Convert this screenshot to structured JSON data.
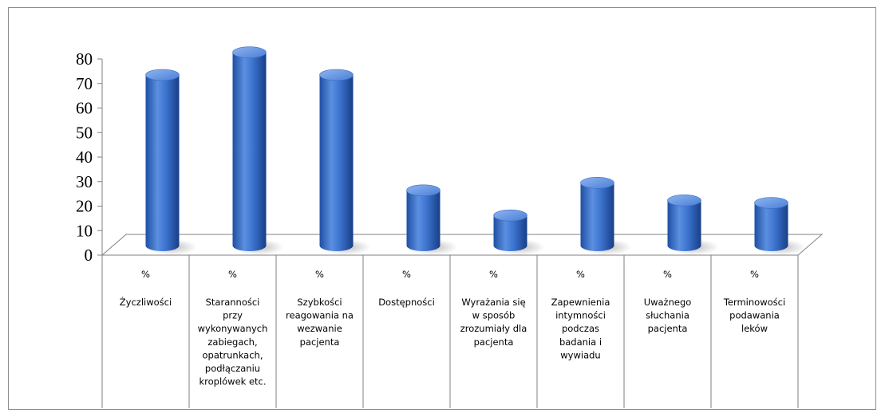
{
  "chart_data": {
    "type": "bar",
    "style": "3d-cylinder",
    "ylim": [
      0,
      80
    ],
    "yticks": [
      0,
      10,
      20,
      30,
      40,
      50,
      60,
      70,
      80
    ],
    "categories": [
      "Życzliwości",
      "Staranności przy wykonywanych zabiegach, opatrunkach, podłączaniu kroplówek etc.",
      "Szybkości reagowania na wezwanie pacjenta",
      "Dostępności",
      "Wyrażania się w sposób zrozumiały dla pacjenta",
      "Zapewnienia intymności podczas badania i wywiadu",
      "Uważnego słuchania pacjenta",
      "Terminowości podawania leków"
    ],
    "category_lines": [
      [
        "Życzliwości"
      ],
      [
        "Staranności",
        "przy",
        "wykonywanych",
        "zabiegach,",
        "opatrunkach,",
        "podłączaniu",
        "kroplówek etc."
      ],
      [
        "Szybkości",
        "reagowania na",
        "wezwanie",
        "pacjenta"
      ],
      [
        "Dostępności"
      ],
      [
        "Wyrażania się",
        "w sposób",
        "zrozumiały dla",
        "pacjenta"
      ],
      [
        "Zapewnienia",
        "intymności",
        "podczas",
        "badania i",
        "wywiadu"
      ],
      [
        "Uważnego",
        "słuchania",
        "pacjenta"
      ],
      [
        "Terminowości",
        "podawania",
        "leków"
      ]
    ],
    "series": [
      {
        "name": "%",
        "values": [
          68,
          77,
          68,
          22,
          12,
          25,
          18,
          17
        ]
      }
    ],
    "bar_color": "#4f81bd",
    "grid": false,
    "legend": "table"
  }
}
